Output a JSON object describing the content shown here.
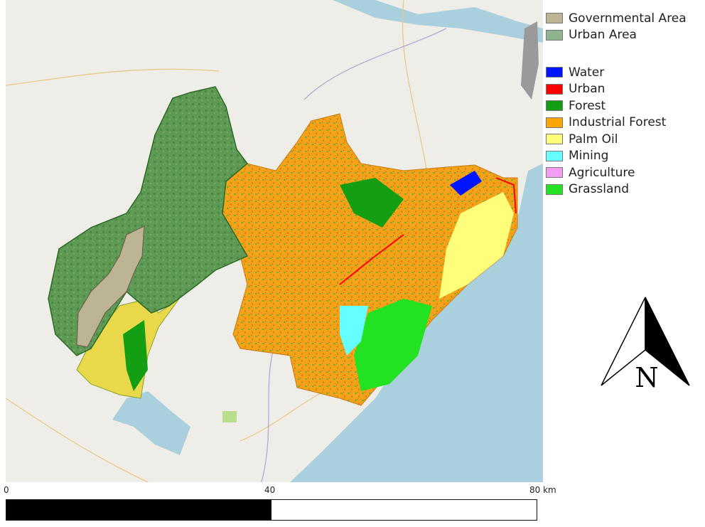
{
  "legend_boundaries": [
    {
      "label": "Governmental Area",
      "color": "#bdb494"
    },
    {
      "label": "Urban Area",
      "color": "#8fb38e"
    }
  ],
  "legend_landcover": [
    {
      "label": "Water",
      "color": "#0014ff"
    },
    {
      "label": "Urban",
      "color": "#ff0000"
    },
    {
      "label": "Forest",
      "color": "#139e13"
    },
    {
      "label": "Industrial Forest",
      "color": "#ffa500"
    },
    {
      "label": "Palm Oil",
      "color": "#fffe7a"
    },
    {
      "label": "Mining",
      "color": "#66ffff"
    },
    {
      "label": "Agriculture",
      "color": "#f39ef5"
    },
    {
      "label": "Grassland",
      "color": "#22e222"
    }
  ],
  "scale": {
    "labels": [
      "0",
      "40",
      "80 km"
    ]
  },
  "north_arrow": {
    "letter": "N"
  },
  "basemap": {
    "sea_color": "#a9d0dc",
    "land_color": "#efede8"
  }
}
